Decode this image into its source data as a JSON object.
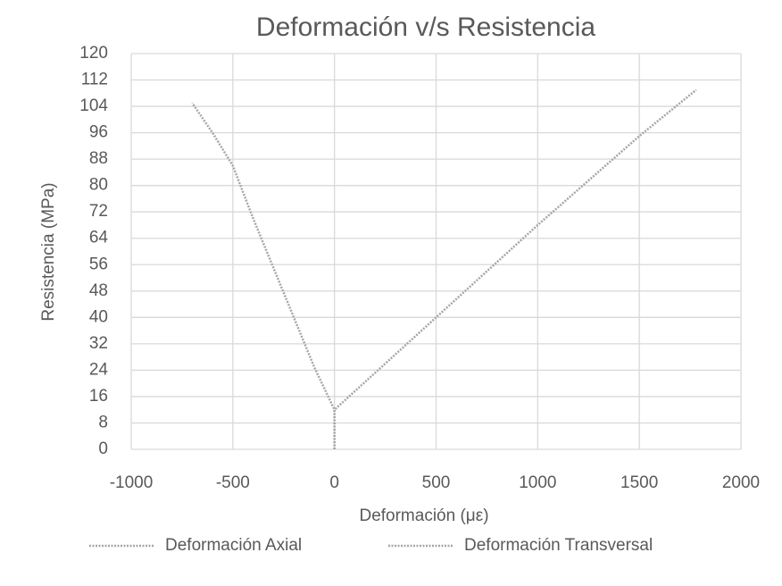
{
  "chart_data": {
    "type": "line",
    "title": "Deformación  v/s Resistencia",
    "x_label": "Deformación (με)",
    "y_label": "Resistencia (MPa)",
    "xlim": [
      -1000,
      2000
    ],
    "xticks": [
      -1000,
      -500,
      0,
      500,
      1000,
      1500,
      2000
    ],
    "ylim": [
      0,
      120
    ],
    "yticks": [
      0,
      8,
      16,
      24,
      32,
      40,
      48,
      56,
      64,
      72,
      80,
      88,
      96,
      104,
      112,
      120
    ],
    "grid": true,
    "legend": "bottom",
    "series": [
      {
        "name": "Deformación Axial",
        "color": "#a6a6a6",
        "x": [
          0,
          0,
          500,
          1000,
          1500,
          1780
        ],
        "values": [
          0,
          12,
          40,
          68,
          95,
          109
        ]
      },
      {
        "name": "Deformación Transversal",
        "color": "#a6a6a6",
        "x": [
          0,
          0,
          -100,
          -200,
          -300,
          -400,
          -500,
          -600,
          -700
        ],
        "values": [
          0,
          12,
          25,
          40,
          55,
          70,
          86,
          96,
          105
        ]
      }
    ]
  }
}
